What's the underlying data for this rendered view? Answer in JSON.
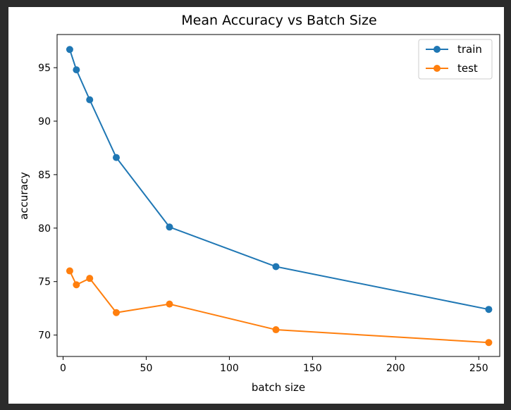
{
  "chart_data": {
    "type": "line",
    "title": "Mean Accuracy vs Batch Size",
    "xlabel": "batch size",
    "ylabel": "accuracy",
    "xlim": [
      -3.6,
      262.6
    ],
    "ylim": [
      68.0,
      98.1
    ],
    "xticks": [
      0,
      50,
      100,
      150,
      200,
      250
    ],
    "yticks": [
      70,
      75,
      80,
      85,
      90,
      95
    ],
    "grid": false,
    "legend_position": "top-right",
    "series": [
      {
        "name": "train",
        "color": "#1f77b4",
        "x": [
          4,
          8,
          16,
          32,
          64,
          128,
          256
        ],
        "y": [
          96.7,
          94.8,
          92.0,
          86.6,
          80.1,
          76.4,
          72.4
        ]
      },
      {
        "name": "test",
        "color": "#ff7f0e",
        "x": [
          4,
          8,
          16,
          32,
          64,
          128,
          256
        ],
        "y": [
          76.0,
          74.7,
          75.3,
          72.1,
          72.9,
          70.5,
          69.3
        ]
      }
    ]
  }
}
